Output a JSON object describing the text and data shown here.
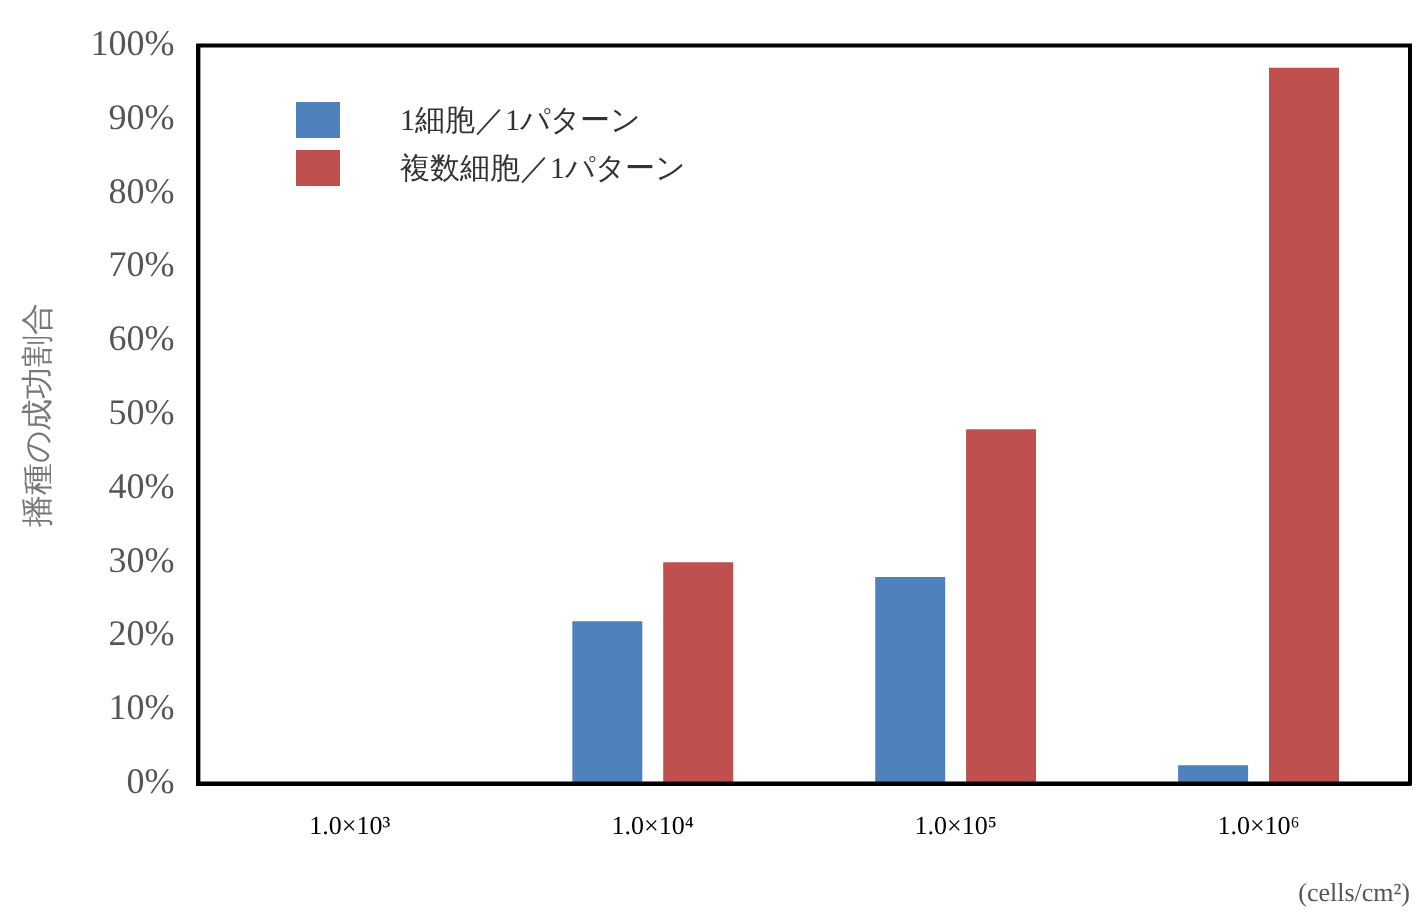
{
  "chart_data": {
    "type": "bar",
    "categories": [
      "1.0×10³",
      "1.0×10⁴",
      "1.0×10⁵",
      "1.0×10⁶"
    ],
    "series": [
      {
        "name": "1細胞／1パターン",
        "color": "#4f81bd",
        "values": [
          0,
          22,
          28,
          2.5
        ]
      },
      {
        "name": "複数細胞／1パターン",
        "color": "#c0504d",
        "values": [
          0,
          30,
          48,
          97
        ]
      }
    ],
    "ylabel": "播種の成功割合",
    "xlabel": "(cells/cm²)",
    "ylim": [
      0,
      100
    ],
    "yticks": [
      {
        "value": 0,
        "label": "0%"
      },
      {
        "value": 10,
        "label": "10%"
      },
      {
        "value": 20,
        "label": "20%"
      },
      {
        "value": 30,
        "label": "30%"
      },
      {
        "value": 40,
        "label": "40%"
      },
      {
        "value": 50,
        "label": "50%"
      },
      {
        "value": 60,
        "label": "60%"
      },
      {
        "value": 70,
        "label": "70%"
      },
      {
        "value": 80,
        "label": "80%"
      },
      {
        "value": 90,
        "label": "90%"
      },
      {
        "value": 100,
        "label": "100%"
      }
    ],
    "grid": false,
    "legend": "top left"
  }
}
